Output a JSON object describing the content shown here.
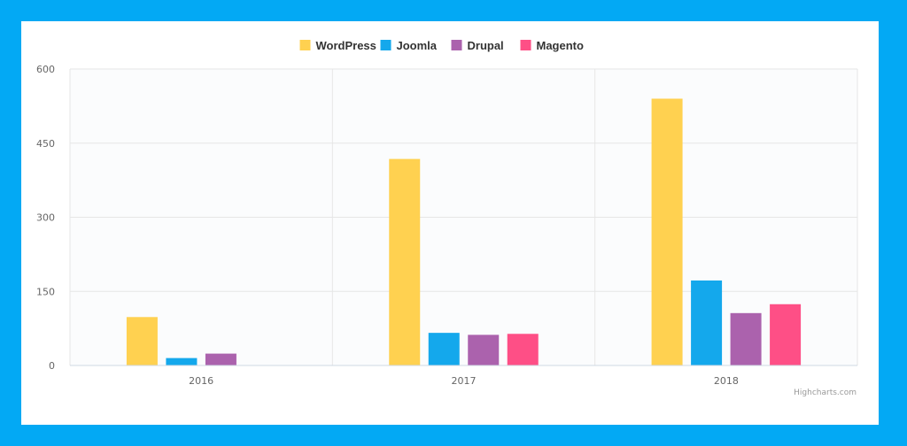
{
  "colors": {
    "background": "#03a9f4",
    "card": "#ffffff"
  },
  "chart_data": {
    "type": "bar",
    "categories": [
      "2016",
      "2017",
      "2018"
    ],
    "series": [
      {
        "name": "WordPress",
        "color": "#ffd150",
        "values": [
          98,
          418,
          540
        ]
      },
      {
        "name": "Joomla",
        "color": "#14a8ec",
        "values": [
          15,
          66,
          172
        ]
      },
      {
        "name": "Drupal",
        "color": "#ab62ad",
        "values": [
          24,
          62,
          106
        ]
      },
      {
        "name": "Magento",
        "color": "#fe4f86",
        "values": [
          0,
          64,
          124
        ]
      }
    ],
    "yticks": [
      "0",
      "150",
      "300",
      "450",
      "600"
    ],
    "ylim": [
      0,
      600
    ],
    "grid": true,
    "legend": "top-center",
    "credit": "Highcharts.com"
  }
}
